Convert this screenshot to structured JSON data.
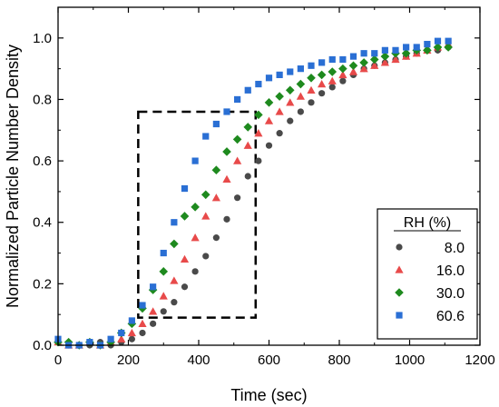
{
  "chart_data": {
    "type": "scatter",
    "xlabel": "Time (sec)",
    "ylabel": "Normalized Particle Number Density",
    "xlim": [
      0,
      1200
    ],
    "ylim": [
      0,
      1.1
    ],
    "x_ticks": [
      "0",
      "200",
      "400",
      "600",
      "800",
      "1000",
      "1200"
    ],
    "y_ticks": [
      "0.0",
      "0.2",
      "0.4",
      "0.6",
      "0.8",
      "1.0"
    ],
    "legend_title": "RH (%)",
    "legend_position": "bottom-right",
    "highlight_box": {
      "x": [
        228,
        562
      ],
      "y": [
        0.09,
        0.76
      ]
    },
    "series": [
      {
        "name": "8.0",
        "marker": "circle",
        "color": "#4a4a4a",
        "points": [
          [
            0,
            0.01
          ],
          [
            30,
            0.0
          ],
          [
            60,
            0.0
          ],
          [
            90,
            0.0
          ],
          [
            120,
            0.01
          ],
          [
            150,
            0.0
          ],
          [
            180,
            0.01
          ],
          [
            210,
            0.02
          ],
          [
            240,
            0.04
          ],
          [
            270,
            0.07
          ],
          [
            300,
            0.11
          ],
          [
            330,
            0.14
          ],
          [
            360,
            0.19
          ],
          [
            390,
            0.24
          ],
          [
            420,
            0.29
          ],
          [
            450,
            0.35
          ],
          [
            480,
            0.41
          ],
          [
            510,
            0.48
          ],
          [
            540,
            0.55
          ],
          [
            570,
            0.6
          ],
          [
            600,
            0.65
          ],
          [
            630,
            0.69
          ],
          [
            660,
            0.73
          ],
          [
            690,
            0.76
          ],
          [
            720,
            0.79
          ],
          [
            750,
            0.82
          ],
          [
            780,
            0.84
          ],
          [
            810,
            0.86
          ],
          [
            840,
            0.88
          ],
          [
            870,
            0.9
          ],
          [
            900,
            0.91
          ],
          [
            930,
            0.92
          ],
          [
            960,
            0.93
          ],
          [
            990,
            0.94
          ],
          [
            1020,
            0.95
          ],
          [
            1050,
            0.96
          ],
          [
            1080,
            0.96
          ],
          [
            1110,
            0.97
          ]
        ]
      },
      {
        "name": "16.0",
        "marker": "triangle",
        "color": "#e84a4a",
        "points": [
          [
            0,
            0.01
          ],
          [
            30,
            0.0
          ],
          [
            60,
            0.0
          ],
          [
            90,
            0.01
          ],
          [
            120,
            0.0
          ],
          [
            150,
            0.01
          ],
          [
            180,
            0.02
          ],
          [
            210,
            0.04
          ],
          [
            240,
            0.07
          ],
          [
            270,
            0.11
          ],
          [
            300,
            0.16
          ],
          [
            330,
            0.21
          ],
          [
            360,
            0.28
          ],
          [
            390,
            0.35
          ],
          [
            420,
            0.42
          ],
          [
            450,
            0.48
          ],
          [
            480,
            0.54
          ],
          [
            510,
            0.6
          ],
          [
            540,
            0.65
          ],
          [
            570,
            0.69
          ],
          [
            600,
            0.73
          ],
          [
            630,
            0.76
          ],
          [
            660,
            0.79
          ],
          [
            690,
            0.81
          ],
          [
            720,
            0.83
          ],
          [
            750,
            0.85
          ],
          [
            780,
            0.86
          ],
          [
            810,
            0.88
          ],
          [
            840,
            0.89
          ],
          [
            870,
            0.9
          ],
          [
            900,
            0.91
          ],
          [
            930,
            0.92
          ],
          [
            960,
            0.93
          ],
          [
            990,
            0.94
          ],
          [
            1020,
            0.95
          ],
          [
            1050,
            0.96
          ],
          [
            1080,
            0.97
          ],
          [
            1110,
            0.98
          ]
        ]
      },
      {
        "name": "30.0",
        "marker": "diamond",
        "color": "#1e8a1e",
        "points": [
          [
            0,
            0.01
          ],
          [
            30,
            0.01
          ],
          [
            60,
            0.0
          ],
          [
            90,
            0.01
          ],
          [
            120,
            0.0
          ],
          [
            150,
            0.01
          ],
          [
            180,
            0.04
          ],
          [
            210,
            0.07
          ],
          [
            240,
            0.12
          ],
          [
            270,
            0.18
          ],
          [
            300,
            0.24
          ],
          [
            330,
            0.33
          ],
          [
            360,
            0.42
          ],
          [
            390,
            0.45
          ],
          [
            420,
            0.49
          ],
          [
            450,
            0.57
          ],
          [
            480,
            0.63
          ],
          [
            510,
            0.67
          ],
          [
            540,
            0.71
          ],
          [
            570,
            0.75
          ],
          [
            600,
            0.79
          ],
          [
            630,
            0.81
          ],
          [
            660,
            0.83
          ],
          [
            690,
            0.85
          ],
          [
            720,
            0.87
          ],
          [
            750,
            0.88
          ],
          [
            780,
            0.89
          ],
          [
            810,
            0.9
          ],
          [
            840,
            0.91
          ],
          [
            870,
            0.92
          ],
          [
            900,
            0.93
          ],
          [
            930,
            0.94
          ],
          [
            960,
            0.95
          ],
          [
            990,
            0.95
          ],
          [
            1020,
            0.96
          ],
          [
            1050,
            0.96
          ],
          [
            1080,
            0.97
          ],
          [
            1110,
            0.97
          ]
        ]
      },
      {
        "name": "60.6",
        "marker": "square",
        "color": "#2a6fd4",
        "points": [
          [
            0,
            0.02
          ],
          [
            30,
            0.0
          ],
          [
            60,
            0.0
          ],
          [
            90,
            0.01
          ],
          [
            120,
            0.0
          ],
          [
            150,
            0.02
          ],
          [
            180,
            0.04
          ],
          [
            210,
            0.08
          ],
          [
            240,
            0.13
          ],
          [
            270,
            0.19
          ],
          [
            300,
            0.3
          ],
          [
            330,
            0.4
          ],
          [
            360,
            0.51
          ],
          [
            390,
            0.6
          ],
          [
            420,
            0.68
          ],
          [
            450,
            0.72
          ],
          [
            480,
            0.76
          ],
          [
            510,
            0.8
          ],
          [
            540,
            0.83
          ],
          [
            570,
            0.85
          ],
          [
            600,
            0.87
          ],
          [
            630,
            0.88
          ],
          [
            660,
            0.89
          ],
          [
            690,
            0.9
          ],
          [
            720,
            0.91
          ],
          [
            750,
            0.92
          ],
          [
            780,
            0.93
          ],
          [
            810,
            0.93
          ],
          [
            840,
            0.94
          ],
          [
            870,
            0.95
          ],
          [
            900,
            0.95
          ],
          [
            930,
            0.96
          ],
          [
            960,
            0.96
          ],
          [
            990,
            0.97
          ],
          [
            1020,
            0.97
          ],
          [
            1050,
            0.98
          ],
          [
            1080,
            0.99
          ],
          [
            1110,
            0.99
          ]
        ]
      }
    ]
  }
}
